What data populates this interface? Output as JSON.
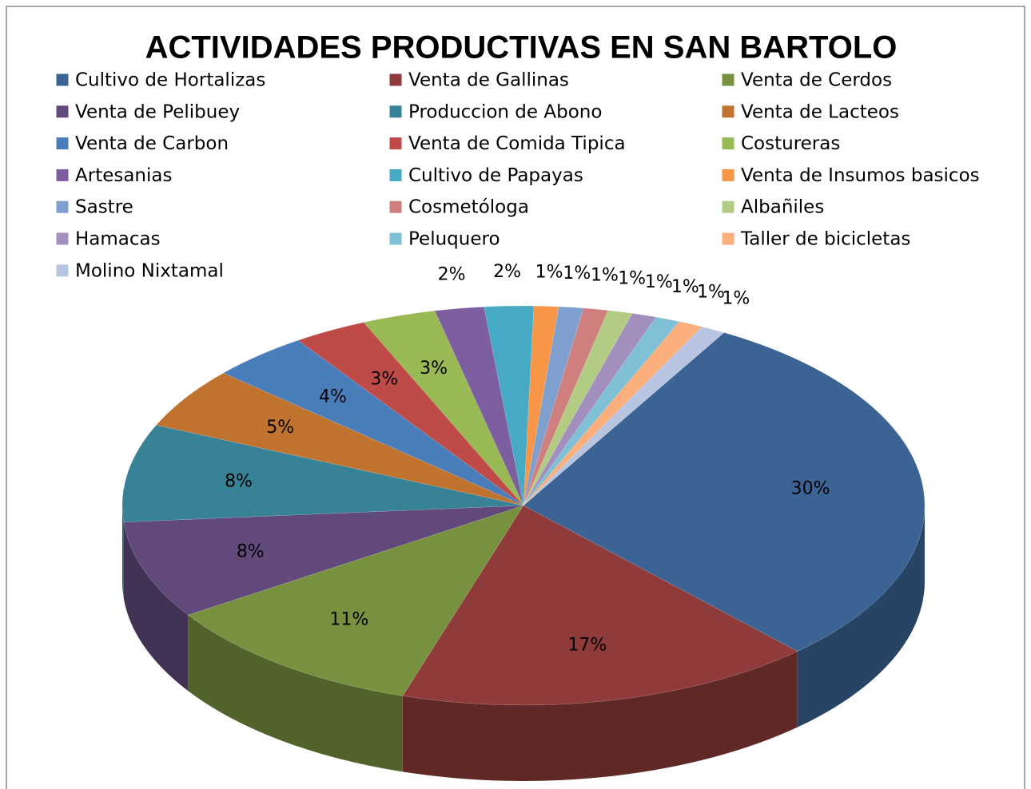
{
  "chart_data": {
    "type": "pie",
    "title": "ACTIVIDADES PRODUCTIVAS EN SAN BARTOLO",
    "categories": [
      "Cultivo de Hortalizas",
      "Venta de Gallinas",
      "Venta de Cerdos",
      "Venta de Pelibuey",
      "Produccion de Abono",
      "Venta de Lacteos",
      "Venta de Carbon",
      "Venta de Comida Tipica",
      "Costureras",
      "Artesanias",
      "Cultivo de Papayas",
      "Venta de Insumos basicos",
      "Sastre",
      "Cosmetóloga",
      "Albañiles",
      "Hamacas",
      "Peluquero",
      "Taller de bicicletas",
      "Molino Nixtamal"
    ],
    "values": [
      30,
      17,
      11,
      8,
      8,
      5,
      4,
      3,
      3,
      2,
      2,
      1,
      1,
      1,
      1,
      1,
      1,
      1,
      1
    ],
    "value_labels": [
      "30%",
      "17%",
      "11%",
      "8%",
      "8%",
      "5%",
      "4%",
      "3%",
      "3%",
      "2%",
      "2%",
      "1%",
      "1%",
      "1%",
      "1%",
      "1%",
      "1%",
      "1%",
      "1%"
    ],
    "colors": [
      "#3b6495",
      "#8f3b3b",
      "#77913f",
      "#614a7b",
      "#388298",
      "#c0732f",
      "#4a7ebb",
      "#be4b48",
      "#98b954",
      "#7d5fa0",
      "#46aac4",
      "#f79646",
      "#7f9fcf",
      "#cf7f7e",
      "#b3cc84",
      "#a38fbe",
      "#7fc0d6",
      "#f9ae7b",
      "#b8c5e0"
    ],
    "legend": "top"
  }
}
